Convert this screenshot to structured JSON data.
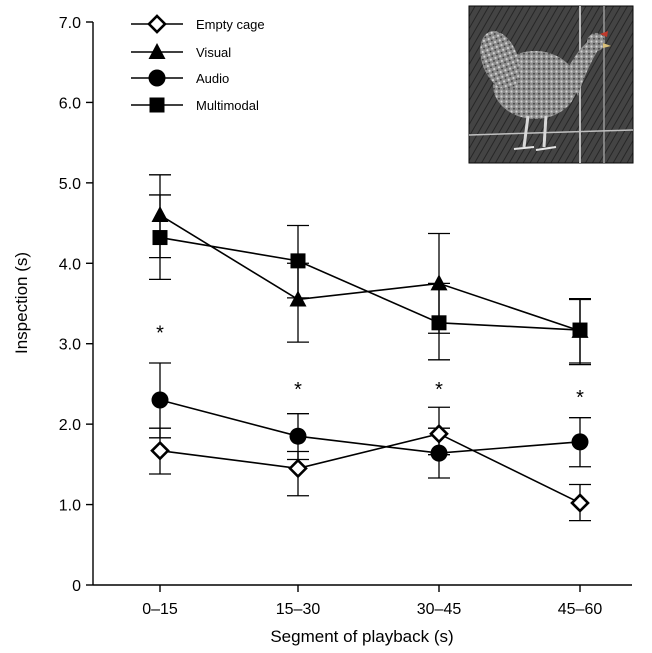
{
  "chart_data": {
    "type": "line",
    "xlabel": "Segment of playback (s)",
    "ylabel": "Inspection (s)",
    "categories": [
      "0–15",
      "15–30",
      "30–45",
      "45–60"
    ],
    "y_ticks": [
      "0",
      "1.0",
      "2.0",
      "3.0",
      "4.0",
      "5.0",
      "6.0",
      "7.0"
    ],
    "ylim": [
      0,
      7
    ],
    "grid": false,
    "legend_position": "top-left",
    "series": [
      {
        "name": "Empty cage",
        "marker": "diamond-open",
        "values": [
          1.67,
          1.45,
          1.88,
          1.02
        ],
        "err_low": [
          1.38,
          1.11,
          1.62,
          0.8
        ],
        "err_high": [
          1.95,
          1.66,
          2.21,
          1.25
        ]
      },
      {
        "name": "Visual",
        "marker": "triangle",
        "values": [
          4.6,
          3.55,
          3.75,
          3.16
        ],
        "err_low": [
          4.07,
          3.02,
          3.13,
          2.76
        ],
        "err_high": [
          5.1,
          4.0,
          4.37,
          3.55
        ]
      },
      {
        "name": "Audio",
        "marker": "circle",
        "values": [
          2.3,
          1.85,
          1.64,
          1.78
        ],
        "err_low": [
          1.83,
          1.56,
          1.33,
          1.47
        ],
        "err_high": [
          2.76,
          2.13,
          1.95,
          2.08
        ]
      },
      {
        "name": "Multimodal",
        "marker": "square",
        "values": [
          4.32,
          4.03,
          3.26,
          3.17
        ],
        "err_low": [
          3.8,
          3.57,
          2.8,
          2.74
        ],
        "err_high": [
          4.85,
          4.47,
          3.75,
          3.56
        ]
      }
    ],
    "annotations": [
      {
        "text": "*",
        "category_index": 0,
        "y": 3.2
      },
      {
        "text": "*",
        "category_index": 1,
        "y": 2.5
      },
      {
        "text": "*",
        "category_index": 2,
        "y": 2.5
      },
      {
        "text": "*",
        "category_index": 3,
        "y": 2.4
      }
    ],
    "inset_photo": "hen-photo"
  }
}
